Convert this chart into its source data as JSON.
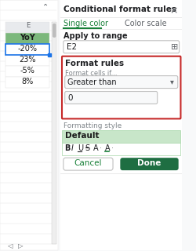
{
  "title": "Conditional format rules",
  "tab1": "Single color",
  "tab2": "Color scale",
  "apply_label": "Apply to range",
  "range_value": "E2",
  "format_rules_label": "Format rules",
  "format_cells_if": "Format cells if...",
  "dropdown_value": "Greater than",
  "input_value": "0",
  "formatting_style_label": "Formatting style",
  "default_label": "Default",
  "cancel_btn": "Cancel",
  "done_btn": "Done",
  "spreadsheet_header": "YoY",
  "spreadsheet_values": [
    "-20%",
    "23%",
    "-5%",
    "8%"
  ],
  "col_label": "E",
  "bg_color": "#f8f9fa",
  "panel_bg": "#ffffff",
  "tab_active_color": "#188038",
  "tab_inactive_color": "#5f6368",
  "red_border_color": "#c62828",
  "done_btn_color": "#1e6e42",
  "cancel_btn_color": "#ffffff",
  "header_bg": "#7cb87c",
  "selected_cell_border": "#1a73e8",
  "format_style_bg": "#c8e6c9",
  "dropdown_bg": "#f8f9fa",
  "input_bg": "#f8f9fa",
  "grid_color": "#e0e0e0",
  "spreadsheet_bg": "#ffffff",
  "scrollbar_color": "#eeeeee",
  "text_dark": "#202124",
  "text_gray": "#80868b"
}
